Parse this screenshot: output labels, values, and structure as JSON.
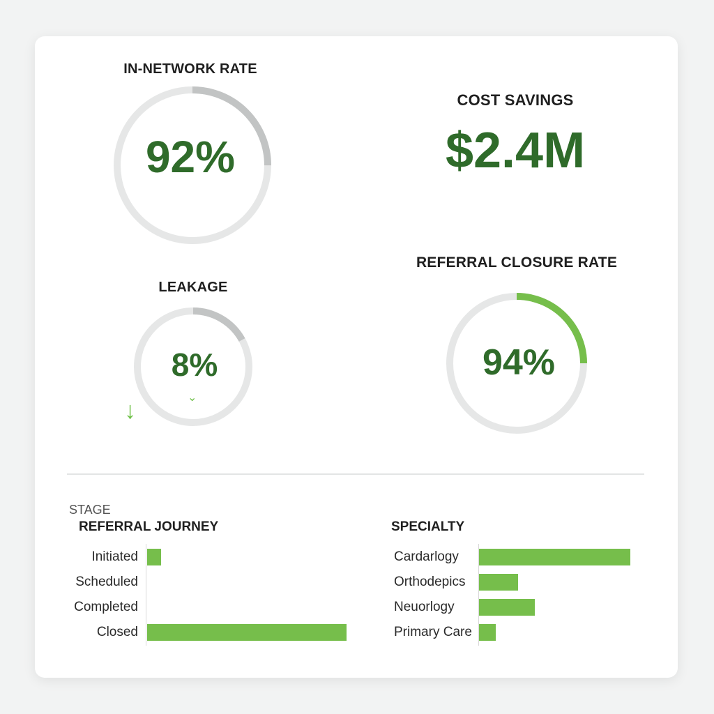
{
  "kpis": {
    "in_network": {
      "title": "IN-NETWORK RATE",
      "value_label": "92%",
      "fraction": 0.25
    },
    "cost_savings": {
      "title": "COST SAVINGS",
      "value_label": "$2.4M"
    },
    "leakage": {
      "title": "LEAKAGE",
      "value_label": "8%",
      "fraction": 0.17
    },
    "closure": {
      "title": "REFERRAL CLOSURE RATE",
      "value_label": "94%",
      "fraction": 0.25
    }
  },
  "colors": {
    "accent": "#76be4b",
    "value_green": "#2f6b2a",
    "track": "#e6e7e7",
    "progress_gray": "#c2c4c4"
  },
  "icons": {
    "leakage_down": "down-arrow-icon",
    "leakage_chevron": "chevron-down-icon"
  },
  "journey": {
    "stage_label": "STAGE",
    "title": "REFERRAL JOURNEY"
  },
  "specialty": {
    "title": "SPECIALTY"
  },
  "chart_data": [
    {
      "type": "bar",
      "orientation": "horizontal",
      "title": "REFERRAL JOURNEY",
      "ylabel": "STAGE",
      "categories": [
        "Initiated",
        "Scheduled",
        "Completed",
        "Closed"
      ],
      "values": [
        7,
        0,
        0,
        100
      ]
    },
    {
      "type": "bar",
      "orientation": "horizontal",
      "title": "SPECIALTY",
      "categories": [
        "Cardarlogy",
        "Orthodepics",
        "Neuorlogy",
        "Primary Care"
      ],
      "values": [
        100,
        26,
        37,
        11
      ]
    }
  ]
}
